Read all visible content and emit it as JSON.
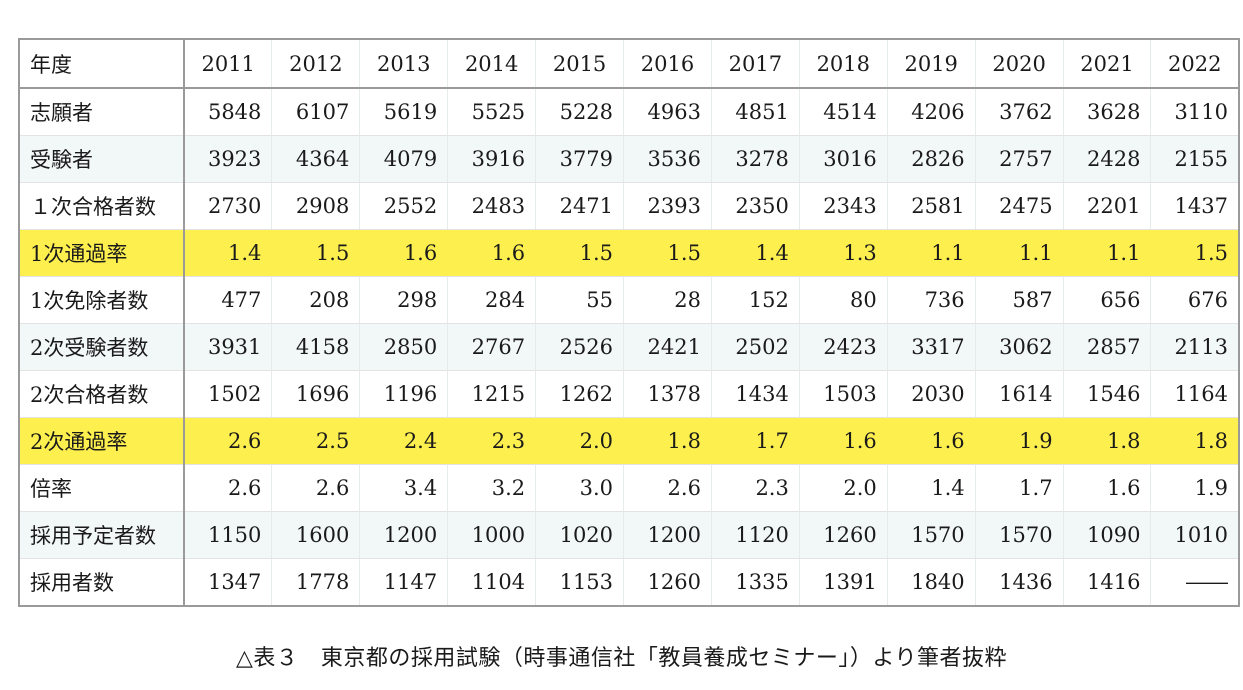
{
  "table": {
    "header_label": "年度",
    "years": [
      "2011",
      "2012",
      "2013",
      "2014",
      "2015",
      "2016",
      "2017",
      "2018",
      "2019",
      "2020",
      "2021",
      "2022"
    ],
    "rows": [
      {
        "label": "志願者",
        "highlight": false,
        "values": [
          "5848",
          "6107",
          "5619",
          "5525",
          "5228",
          "4963",
          "4851",
          "4514",
          "4206",
          "3762",
          "3628",
          "3110"
        ]
      },
      {
        "label": "受験者",
        "highlight": false,
        "values": [
          "3923",
          "4364",
          "4079",
          "3916",
          "3779",
          "3536",
          "3278",
          "3016",
          "2826",
          "2757",
          "2428",
          "2155"
        ]
      },
      {
        "label": "１次合格者数",
        "highlight": false,
        "values": [
          "2730",
          "2908",
          "2552",
          "2483",
          "2471",
          "2393",
          "2350",
          "2343",
          "2581",
          "2475",
          "2201",
          "1437"
        ]
      },
      {
        "label": "1次通過率",
        "highlight": true,
        "values": [
          "1.4",
          "1.5",
          "1.6",
          "1.6",
          "1.5",
          "1.5",
          "1.4",
          "1.3",
          "1.1",
          "1.1",
          "1.1",
          "1.5"
        ]
      },
      {
        "label": "1次免除者数",
        "highlight": false,
        "values": [
          "477",
          "208",
          "298",
          "284",
          "55",
          "28",
          "152",
          "80",
          "736",
          "587",
          "656",
          "676"
        ]
      },
      {
        "label": "2次受験者数",
        "highlight": false,
        "values": [
          "3931",
          "4158",
          "2850",
          "2767",
          "2526",
          "2421",
          "2502",
          "2423",
          "3317",
          "3062",
          "2857",
          "2113"
        ]
      },
      {
        "label": "2次合格者数",
        "highlight": false,
        "values": [
          "1502",
          "1696",
          "1196",
          "1215",
          "1262",
          "1378",
          "1434",
          "1503",
          "2030",
          "1614",
          "1546",
          "1164"
        ]
      },
      {
        "label": "2次通過率",
        "highlight": true,
        "values": [
          "2.6",
          "2.5",
          "2.4",
          "2.3",
          "2.0",
          "1.8",
          "1.7",
          "1.6",
          "1.6",
          "1.9",
          "1.8",
          "1.8"
        ]
      },
      {
        "label": "倍率",
        "highlight": false,
        "values": [
          "2.6",
          "2.6",
          "3.4",
          "3.2",
          "3.0",
          "2.6",
          "2.3",
          "2.0",
          "1.4",
          "1.7",
          "1.6",
          "1.9"
        ]
      },
      {
        "label": "採用予定者数",
        "highlight": false,
        "values": [
          "1150",
          "1600",
          "1200",
          "1000",
          "1020",
          "1200",
          "1120",
          "1260",
          "1570",
          "1570",
          "1090",
          "1010"
        ]
      },
      {
        "label": "採用者数",
        "highlight": false,
        "values": [
          "1347",
          "1778",
          "1147",
          "1104",
          "1153",
          "1260",
          "1335",
          "1391",
          "1840",
          "1436",
          "1416",
          "――"
        ]
      }
    ]
  },
  "caption": "△表３　東京都の採用試験（時事通信社「教員養成セミナー」）より筆者抜粋",
  "colors": {
    "highlight": "#fdef4e",
    "stripe": "#f2f7f7",
    "border": "#9a9a9a"
  }
}
